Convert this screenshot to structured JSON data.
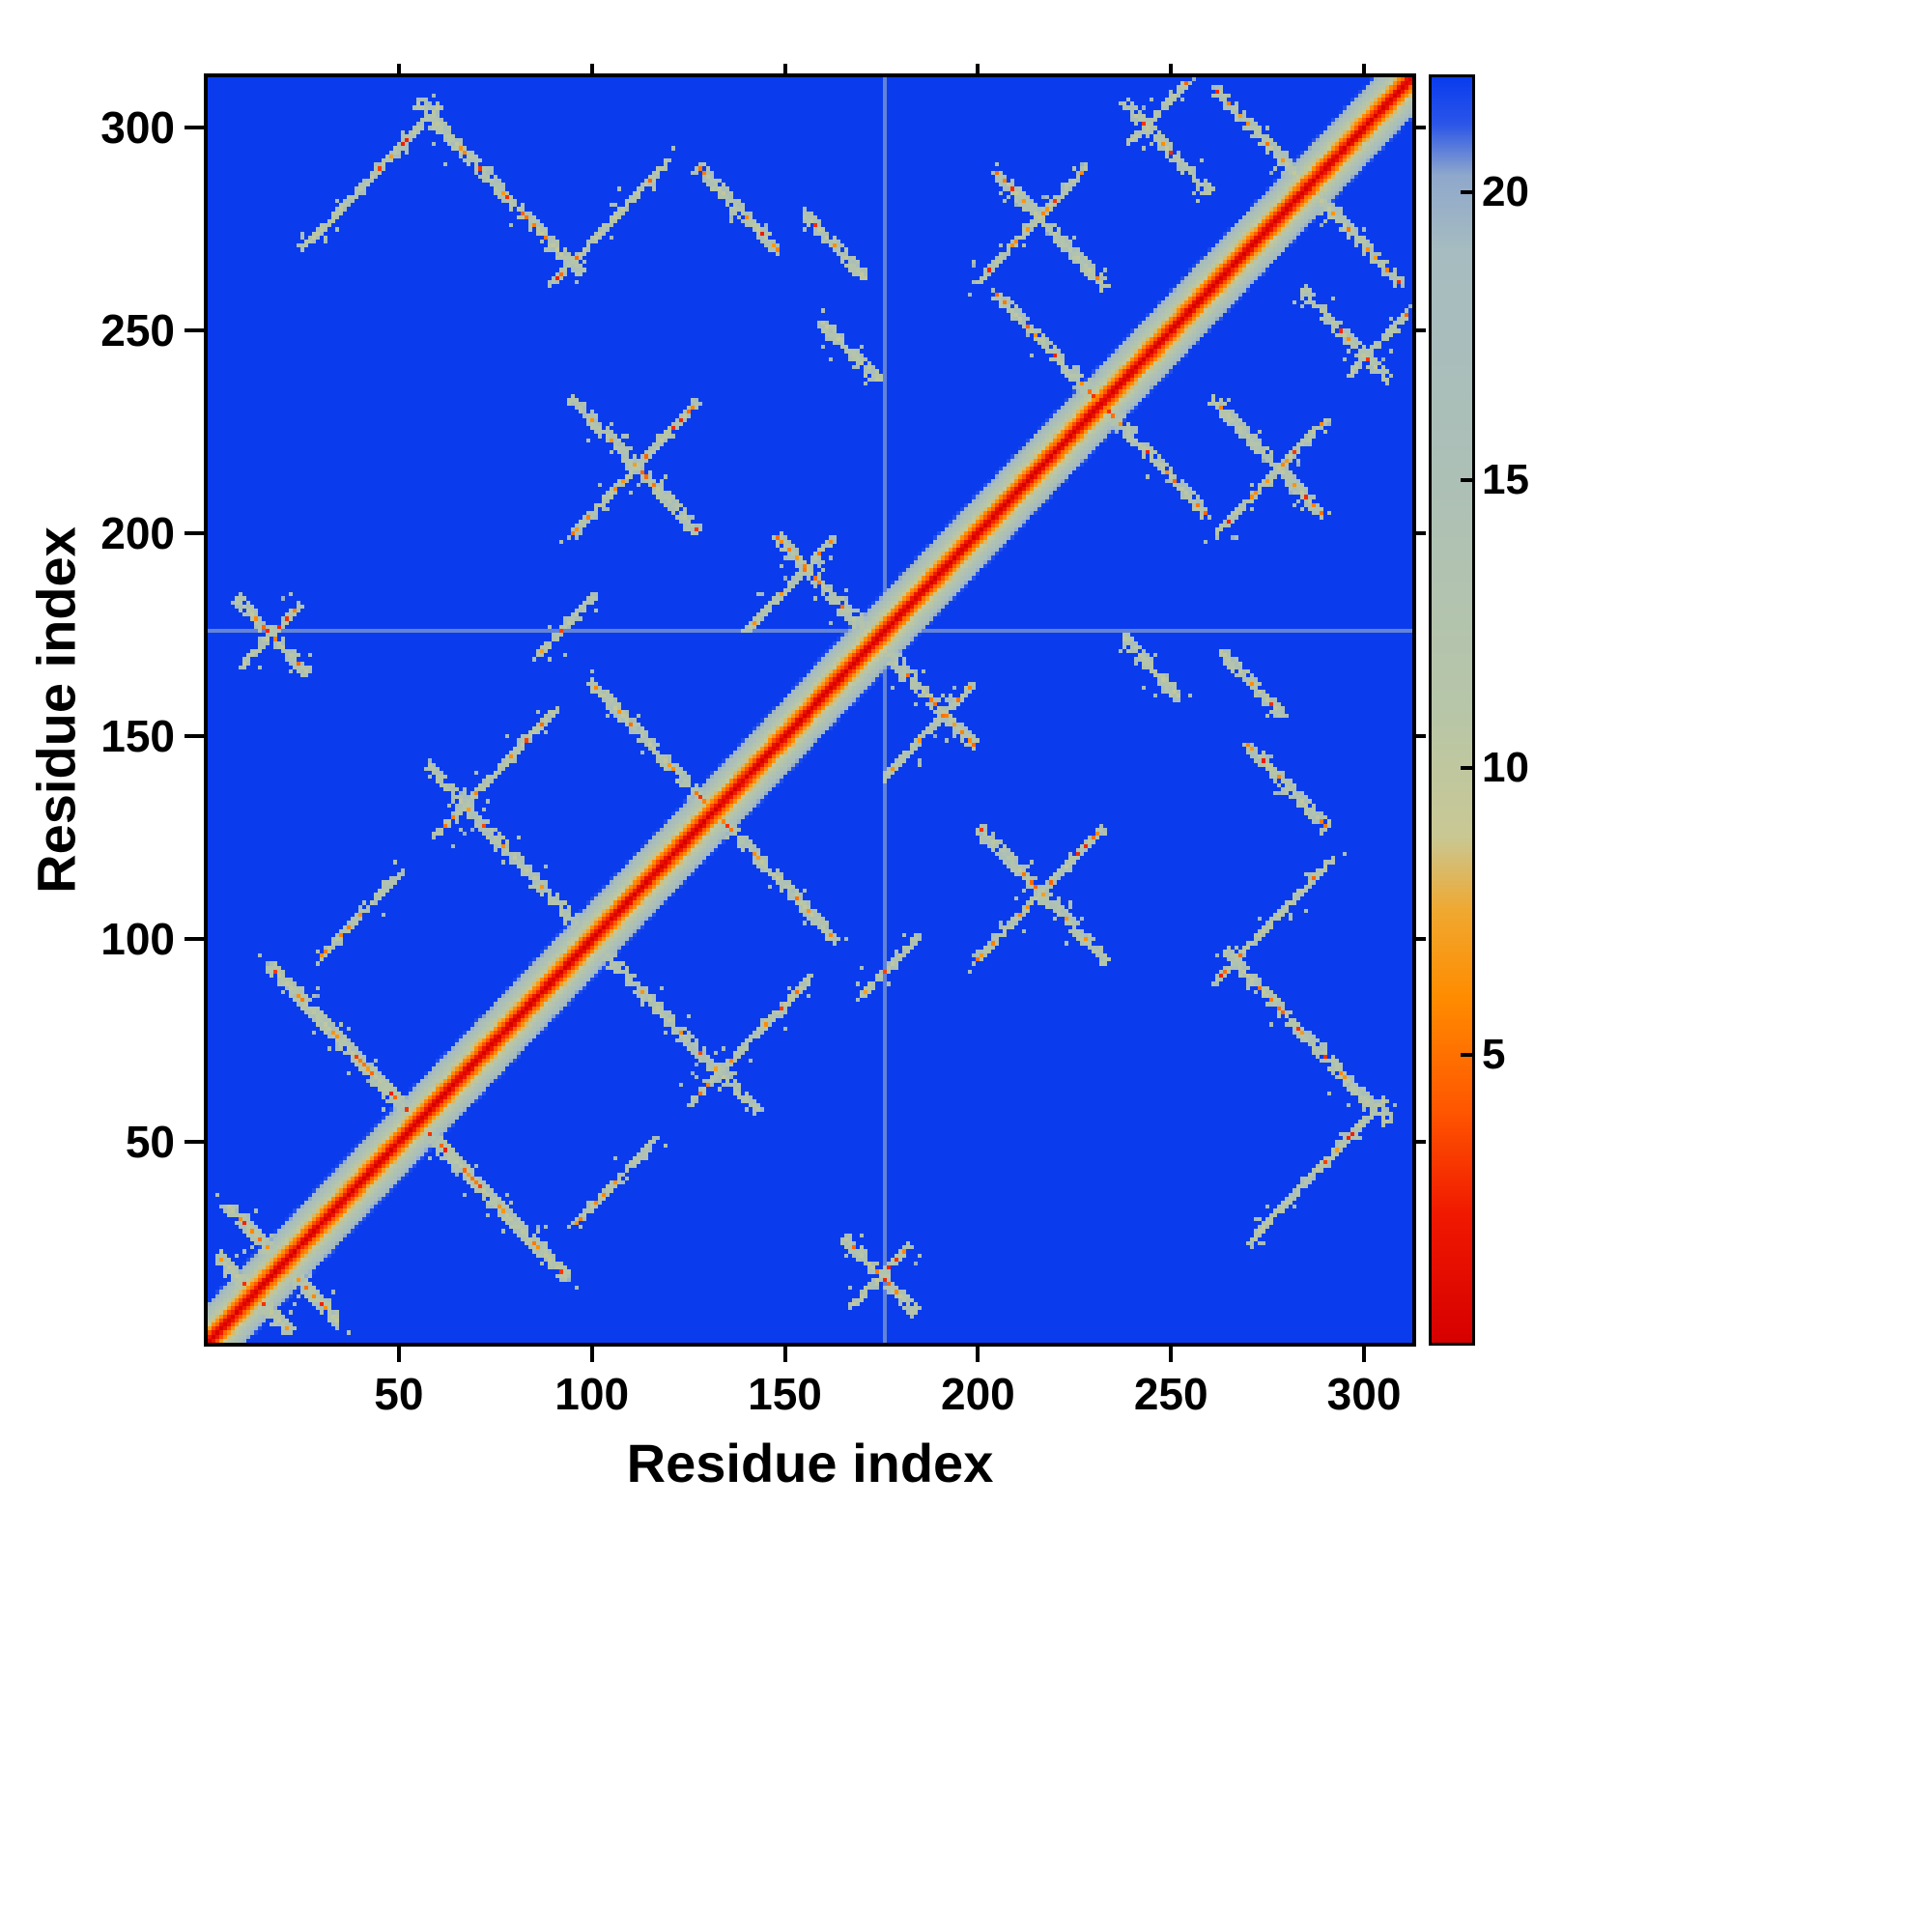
{
  "chart_data": {
    "type": "heatmap",
    "title": "",
    "xlabel": "Residue index",
    "ylabel": "Residue index",
    "n_residues": 312,
    "x_range": [
      1,
      312
    ],
    "y_range": [
      1,
      312
    ],
    "x_ticks": [
      50,
      100,
      150,
      200,
      250,
      300
    ],
    "y_ticks": [
      50,
      100,
      150,
      200,
      250,
      300
    ],
    "grid": false,
    "legend": "none",
    "colorbar": {
      "position": "right",
      "vmin": 0,
      "vmax": 22,
      "ticks": [
        5,
        10,
        15,
        20
      ]
    },
    "colormap_stops": [
      [
        0.0,
        "#d60000"
      ],
      [
        2.2,
        "#f01800"
      ],
      [
        4.0,
        "#ff5500"
      ],
      [
        6.0,
        "#ff8c00"
      ],
      [
        7.5,
        "#f0a830"
      ],
      [
        8.8,
        "#c9c894"
      ],
      [
        11.0,
        "#b7c6a8"
      ],
      [
        15.0,
        "#adc0b6"
      ],
      [
        19.0,
        "#a6bcc0"
      ],
      [
        20.3,
        "#8fa8cc"
      ],
      [
        21.2,
        "#2b55e8"
      ],
      [
        22.0,
        "#0a3cee"
      ]
    ],
    "background_value": 22,
    "diagonal_band": {
      "half_width": 12,
      "scale": 2.2
    },
    "faint_line_at": 176,
    "contacts": [
      {
        "a": 3,
        "b": 22,
        "len": 18,
        "dir": -1
      },
      {
        "a": 6,
        "b": 34,
        "len": 24,
        "dir": -1
      },
      {
        "a": 17,
        "b": 93,
        "len": 76,
        "dir": -1
      },
      {
        "a": 30,
        "b": 96,
        "len": 20,
        "dir": 1
      },
      {
        "a": 58,
        "b": 142,
        "len": 42,
        "dir": -1
      },
      {
        "a": 60,
        "b": 126,
        "len": 30,
        "dir": 1
      },
      {
        "a": 100,
        "b": 163,
        "len": 36,
        "dir": -1
      },
      {
        "a": 86,
        "b": 170,
        "len": 14,
        "dir": 1
      },
      {
        "a": 148,
        "b": 199,
        "len": 30,
        "dir": -1
      },
      {
        "a": 95,
        "b": 200,
        "len": 32,
        "dir": 1
      },
      {
        "a": 95,
        "b": 233,
        "len": 32,
        "dir": -1
      },
      {
        "a": 140,
        "b": 176,
        "len": 22,
        "dir": 1
      },
      {
        "a": 205,
        "b": 259,
        "len": 32,
        "dir": -1
      },
      {
        "a": 262,
        "b": 309,
        "len": 30,
        "dir": -1
      },
      {
        "a": 25,
        "b": 270,
        "len": 35,
        "dir": 1
      },
      {
        "a": 55,
        "b": 306,
        "len": 42,
        "dir": -1
      },
      {
        "a": 90,
        "b": 262,
        "len": 30,
        "dir": 1
      },
      {
        "a": 128,
        "b": 290,
        "len": 20,
        "dir": -1
      },
      {
        "a": 160,
        "b": 252,
        "len": 14,
        "dir": -1
      },
      {
        "a": 200,
        "b": 262,
        "len": 28,
        "dir": 1
      },
      {
        "a": 205,
        "b": 289,
        "len": 28,
        "dir": -1
      },
      {
        "a": 238,
        "b": 306,
        "len": 22,
        "dir": -1
      },
      {
        "a": 240,
        "b": 297,
        "len": 14,
        "dir": 1
      },
      {
        "a": 155,
        "b": 279,
        "len": 16,
        "dir": -1
      },
      {
        "a": 8,
        "b": 184,
        "len": 18,
        "dir": -1
      },
      {
        "a": 10,
        "b": 168,
        "len": 14,
        "dir": 1
      }
    ],
    "noise_seed": 1337
  }
}
